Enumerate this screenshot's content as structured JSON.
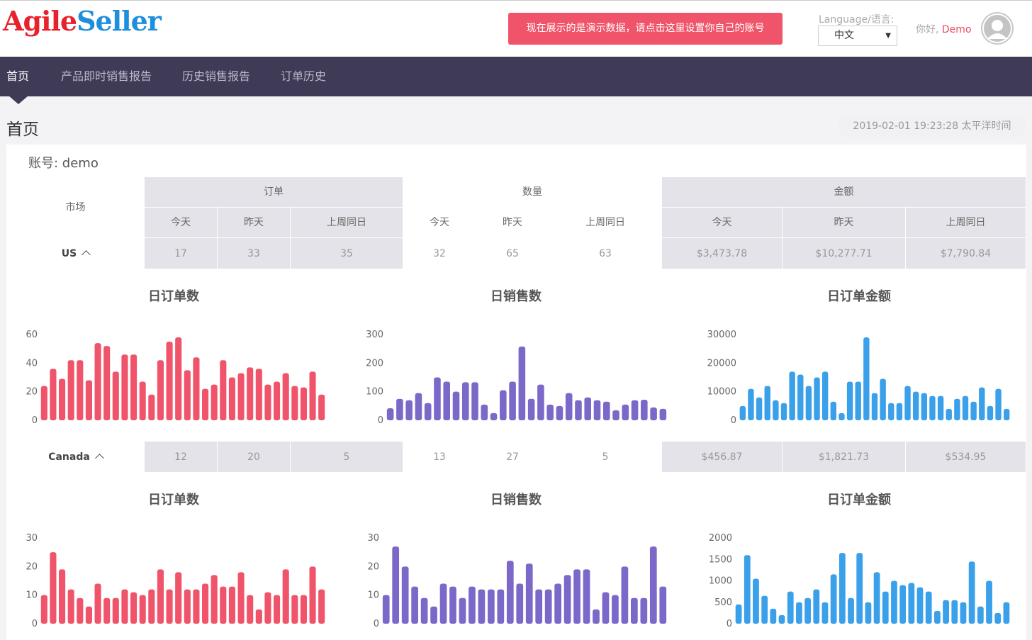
{
  "header": {
    "logo_part1": "Agile",
    "logo_part2": "Seller",
    "demo_notice": "现在展示的是演示数据，请点击这里设置你自己的账号",
    "language_label": "Language/语言:",
    "language_value": "中文",
    "greeting": "你好,",
    "username": "Demo"
  },
  "nav": {
    "items": [
      "首页",
      "产品即时销售报告",
      "历史销售报告",
      "订单历史"
    ],
    "active_index": 0
  },
  "page": {
    "title": "首页",
    "timestamp": "2019-02-01 19:23:28 太平洋时间"
  },
  "account": {
    "label": "账号: demo"
  },
  "table": {
    "market_header": "市场",
    "groups": [
      "订单",
      "数量",
      "金额"
    ],
    "subheaders": [
      "今天",
      "昨天",
      "上周同日",
      "今天",
      "昨天",
      "上周同日",
      "今天",
      "昨天",
      "上周同日"
    ],
    "rows": [
      {
        "market": "US",
        "values": [
          "17",
          "33",
          "35",
          "32",
          "65",
          "63",
          "$3,473.78",
          "$10,277.71",
          "$7,790.84"
        ]
      },
      {
        "market": "Canada",
        "values": [
          "12",
          "20",
          "5",
          "13",
          "27",
          "5",
          "$456.87",
          "$1,821.73",
          "$534.95"
        ]
      }
    ]
  },
  "colors": {
    "orders": "#f0546a",
    "quantity": "#7b68c8",
    "amount": "#3aa0ea",
    "accent": "#e8495c",
    "nav_bg": "#3f3a55"
  },
  "chart_titles": [
    "日订单数",
    "日销售数",
    "日订单金额",
    "日订单数",
    "日销售数",
    "日订单金额"
  ],
  "chart_data": [
    {
      "type": "bar",
      "title": "日订单数",
      "market": "US",
      "ylim": [
        0,
        60
      ],
      "yticks": [
        0,
        20,
        40,
        60
      ],
      "values": [
        24,
        36,
        29,
        42,
        42,
        28,
        54,
        52,
        34,
        46,
        46,
        27,
        18,
        42,
        55,
        58,
        35,
        44,
        22,
        25,
        42,
        30,
        33,
        37,
        36,
        25,
        27,
        33,
        24,
        23,
        34,
        18
      ]
    },
    {
      "type": "bar",
      "title": "日销售数",
      "market": "US",
      "ylim": [
        0,
        300
      ],
      "yticks": [
        0,
        100,
        200,
        300
      ],
      "values": [
        42,
        75,
        70,
        95,
        60,
        150,
        135,
        100,
        133,
        133,
        55,
        25,
        105,
        135,
        258,
        75,
        125,
        55,
        50,
        95,
        70,
        80,
        70,
        65,
        35,
        55,
        70,
        72,
        45,
        40
      ]
    },
    {
      "type": "bar",
      "title": "日订单金额",
      "market": "US",
      "ylim": [
        0,
        30000
      ],
      "yticks": [
        0,
        10000,
        20000,
        30000
      ],
      "values": [
        5000,
        11000,
        8000,
        12000,
        7000,
        6000,
        17000,
        16000,
        12000,
        15000,
        17000,
        6500,
        2500,
        13500,
        13500,
        29000,
        9500,
        14500,
        6000,
        6000,
        12000,
        10000,
        9500,
        8500,
        8500,
        4000,
        7500,
        8500,
        6500,
        11500,
        5000,
        11000,
        4000
      ]
    },
    {
      "type": "bar",
      "title": "日订单数",
      "market": "Canada",
      "ylim": [
        0,
        30
      ],
      "yticks": [
        0,
        10,
        20,
        30
      ],
      "values": [
        10,
        25,
        19,
        12,
        9,
        6,
        14,
        9,
        9,
        12,
        11,
        10,
        12,
        19,
        12,
        18,
        12,
        12,
        14,
        17,
        13,
        13,
        18,
        10,
        5,
        11,
        10,
        19,
        10,
        10,
        20,
        12
      ]
    },
    {
      "type": "bar",
      "title": "日销售数",
      "market": "Canada",
      "ylim": [
        0,
        30
      ],
      "yticks": [
        0,
        10,
        20,
        30
      ],
      "values": [
        10,
        27,
        20,
        13,
        9,
        6,
        14,
        13,
        9,
        13,
        12,
        12,
        12,
        22,
        14,
        21,
        12,
        12,
        14,
        17,
        19,
        19,
        5,
        11,
        10,
        20,
        9,
        9,
        27,
        13
      ]
    },
    {
      "type": "bar",
      "title": "日订单金额",
      "market": "Canada",
      "ylim": [
        0,
        2000
      ],
      "yticks": [
        0,
        500,
        1000,
        1500,
        2000
      ],
      "values": [
        450,
        1600,
        1050,
        650,
        350,
        200,
        750,
        500,
        600,
        800,
        500,
        1150,
        1650,
        600,
        1650,
        500,
        1200,
        750,
        1000,
        900,
        950,
        850,
        750,
        300,
        550,
        550,
        500,
        1450,
        400,
        1000,
        250,
        500
      ]
    }
  ]
}
